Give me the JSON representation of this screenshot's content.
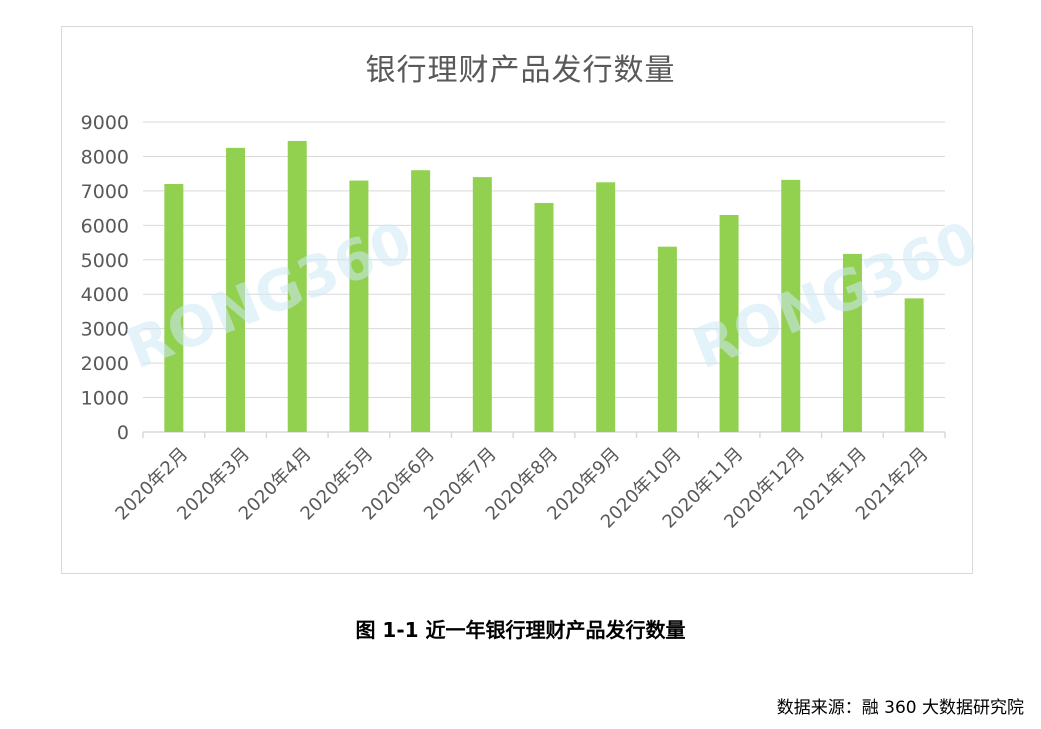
{
  "chart_data": {
    "type": "bar",
    "title": "银行理财产品发行数量",
    "categories": [
      "2020年2月",
      "2020年3月",
      "2020年4月",
      "2020年5月",
      "2020年6月",
      "2020年7月",
      "2020年8月",
      "2020年9月",
      "2020年10月",
      "2020年11月",
      "2020年12月",
      "2021年1月",
      "2021年2月"
    ],
    "values": [
      7200,
      8250,
      8450,
      7300,
      7600,
      7400,
      6650,
      7250,
      5380,
      6300,
      7320,
      5170,
      3880
    ],
    "ylim": [
      0,
      9000
    ],
    "yticks": [
      0,
      1000,
      2000,
      3000,
      4000,
      5000,
      6000,
      7000,
      8000,
      9000
    ],
    "xlabel": "",
    "ylabel": "",
    "grid": true,
    "bar_color": "#92d050",
    "grid_color": "#d9d9d9",
    "axis_text_color": "#595959"
  },
  "watermark": "RONG360",
  "caption": "图 1-1 近一年银行理财产品发行数量",
  "source": "数据来源：融 360 大数据研究院"
}
